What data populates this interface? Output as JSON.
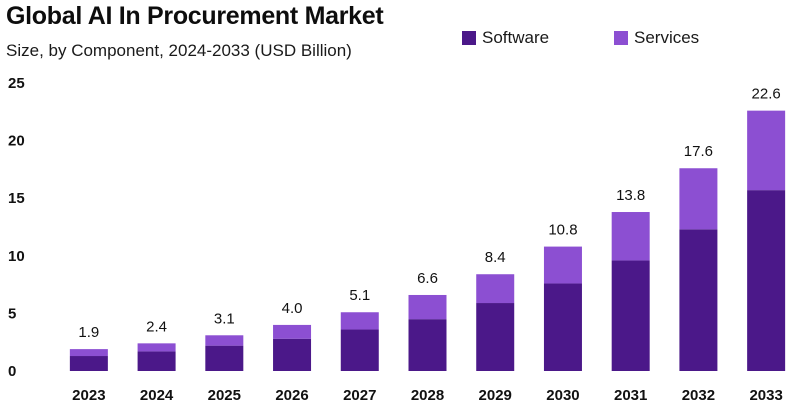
{
  "chart_data": {
    "type": "bar",
    "stacked": true,
    "title": "Global AI In Procurement Market",
    "subtitle": "Size, by Component, 2024-2033 (USD Billion)",
    "xlabel": "",
    "ylabel": "",
    "ylim": [
      0,
      25
    ],
    "yticks": [
      0,
      5,
      10,
      15,
      20,
      25
    ],
    "grid": false,
    "legend_position": "top-right",
    "categories": [
      "2023",
      "2024",
      "2025",
      "2026",
      "2027",
      "2028",
      "2029",
      "2030",
      "2031",
      "2032",
      "2033"
    ],
    "series": [
      {
        "name": "Software",
        "color": "#4b1889",
        "values": [
          1.3,
          1.7,
          2.2,
          2.8,
          3.6,
          4.5,
          5.9,
          7.6,
          9.6,
          12.3,
          15.7
        ]
      },
      {
        "name": "Services",
        "color": "#8c4fd2",
        "values": [
          0.6,
          0.7,
          0.9,
          1.2,
          1.5,
          2.1,
          2.5,
          3.2,
          4.2,
          5.3,
          6.9
        ]
      }
    ],
    "totals": [
      "1.9",
      "2.4",
      "3.1",
      "4.0",
      "5.1",
      "6.6",
      "8.4",
      "10.8",
      "13.8",
      "17.6",
      "22.6"
    ]
  }
}
